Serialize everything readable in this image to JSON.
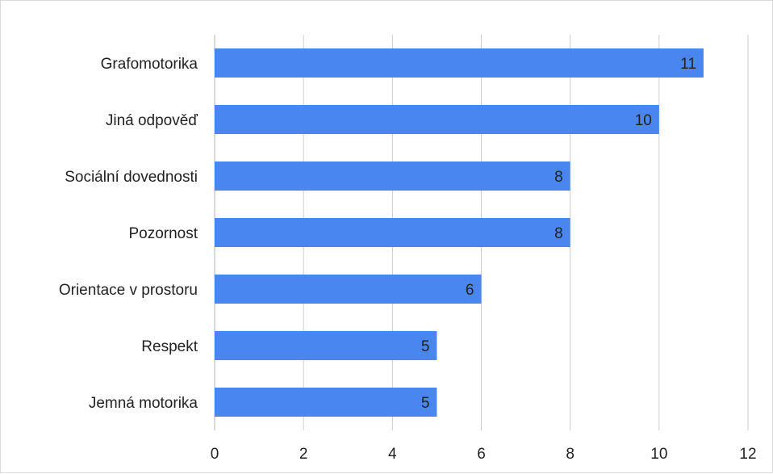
{
  "chart_data": {
    "type": "bar",
    "orientation": "horizontal",
    "title": "",
    "xlabel": "",
    "ylabel": "",
    "categories": [
      "Grafomotorika",
      "Jiná odpověď",
      "Sociální dovednosti",
      "Pozornost",
      "Orientace v prostoru",
      "Respekt",
      "Jemná motorika"
    ],
    "values": [
      11,
      10,
      8,
      8,
      6,
      5,
      5
    ],
    "xlim": [
      0,
      12
    ],
    "xticks": [
      "0",
      "2",
      "4",
      "6",
      "8",
      "10",
      "12"
    ],
    "data_labels": [
      "11",
      "10",
      "8",
      "8",
      "6",
      "5",
      "5"
    ],
    "grid": "vertical",
    "legend": "none",
    "bar_color": "#4a86f0",
    "grid_color": "#cccccc"
  }
}
